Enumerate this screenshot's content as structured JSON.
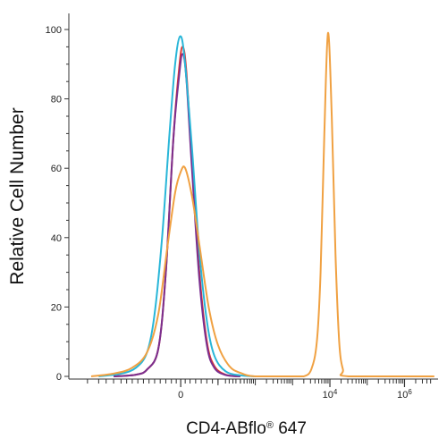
{
  "chart_data": {
    "type": "line",
    "title": "",
    "xlabel": "CD4-ABflo",
    "xlabel_superscript": "®",
    "xlabel_suffix": " 647",
    "ylabel": "Relative Cell Number",
    "ylim": [
      0,
      100
    ],
    "y_ticks": [
      0,
      20,
      40,
      60,
      80,
      100
    ],
    "x_scale": "biexponential",
    "x_ticks": [
      {
        "label": "0",
        "exp": null
      },
      {
        "label": "10",
        "exp": "4"
      },
      {
        "label": "10",
        "exp": "6"
      }
    ],
    "grid": false,
    "legend": "none",
    "series": [
      {
        "color": "#e0342f",
        "points": [
          [
            -1.8,
            0
          ],
          [
            -1.2,
            0.5
          ],
          [
            -0.9,
            2
          ],
          [
            -0.6,
            8
          ],
          [
            -0.4,
            30
          ],
          [
            -0.2,
            68
          ],
          [
            -0.05,
            88
          ],
          [
            0.05,
            95
          ],
          [
            0.15,
            88
          ],
          [
            0.3,
            62
          ],
          [
            0.5,
            30
          ],
          [
            0.7,
            10
          ],
          [
            0.9,
            3
          ],
          [
            1.2,
            0.5
          ],
          [
            1.6,
            0
          ]
        ]
      },
      {
        "color": "#7a2f8f",
        "points": [
          [
            -1.8,
            0
          ],
          [
            -1.2,
            0.5
          ],
          [
            -0.9,
            2
          ],
          [
            -0.6,
            8
          ],
          [
            -0.4,
            30
          ],
          [
            -0.2,
            68
          ],
          [
            -0.05,
            86
          ],
          [
            0.05,
            93
          ],
          [
            0.15,
            86
          ],
          [
            0.3,
            60
          ],
          [
            0.5,
            28
          ],
          [
            0.7,
            9
          ],
          [
            0.9,
            2.5
          ],
          [
            1.2,
            0.4
          ],
          [
            1.6,
            0
          ]
        ]
      },
      {
        "color": "#29b6d8",
        "points": [
          [
            -2.2,
            0
          ],
          [
            -1.6,
            0.8
          ],
          [
            -1.2,
            2.5
          ],
          [
            -0.9,
            7
          ],
          [
            -0.7,
            18
          ],
          [
            -0.5,
            40
          ],
          [
            -0.3,
            70
          ],
          [
            -0.15,
            90
          ],
          [
            -0.02,
            98
          ],
          [
            0.1,
            92
          ],
          [
            0.3,
            66
          ],
          [
            0.5,
            36
          ],
          [
            0.7,
            16
          ],
          [
            0.9,
            6
          ],
          [
            1.2,
            1.5
          ],
          [
            1.6,
            0.3
          ],
          [
            2.0,
            0
          ]
        ]
      },
      {
        "color": "#f0a142",
        "points": [
          [
            -2.4,
            0
          ],
          [
            -1.8,
            0.8
          ],
          [
            -1.3,
            2.5
          ],
          [
            -0.9,
            7
          ],
          [
            -0.6,
            18
          ],
          [
            -0.35,
            38
          ],
          [
            -0.15,
            53
          ],
          [
            0.0,
            59
          ],
          [
            0.12,
            60
          ],
          [
            0.3,
            52
          ],
          [
            0.5,
            38
          ],
          [
            0.75,
            20
          ],
          [
            1.0,
            9
          ],
          [
            1.3,
            3
          ],
          [
            1.6,
            1
          ],
          [
            2.0,
            0
          ],
          [
            3.0,
            0
          ],
          [
            3.3,
            0
          ],
          [
            3.5,
            2
          ],
          [
            3.65,
            10
          ],
          [
            3.75,
            30
          ],
          [
            3.85,
            70
          ],
          [
            3.95,
            99
          ],
          [
            4.05,
            75
          ],
          [
            4.15,
            35
          ],
          [
            4.25,
            10
          ],
          [
            4.35,
            2
          ],
          [
            4.5,
            0
          ],
          [
            6.8,
            0
          ]
        ]
      }
    ]
  }
}
